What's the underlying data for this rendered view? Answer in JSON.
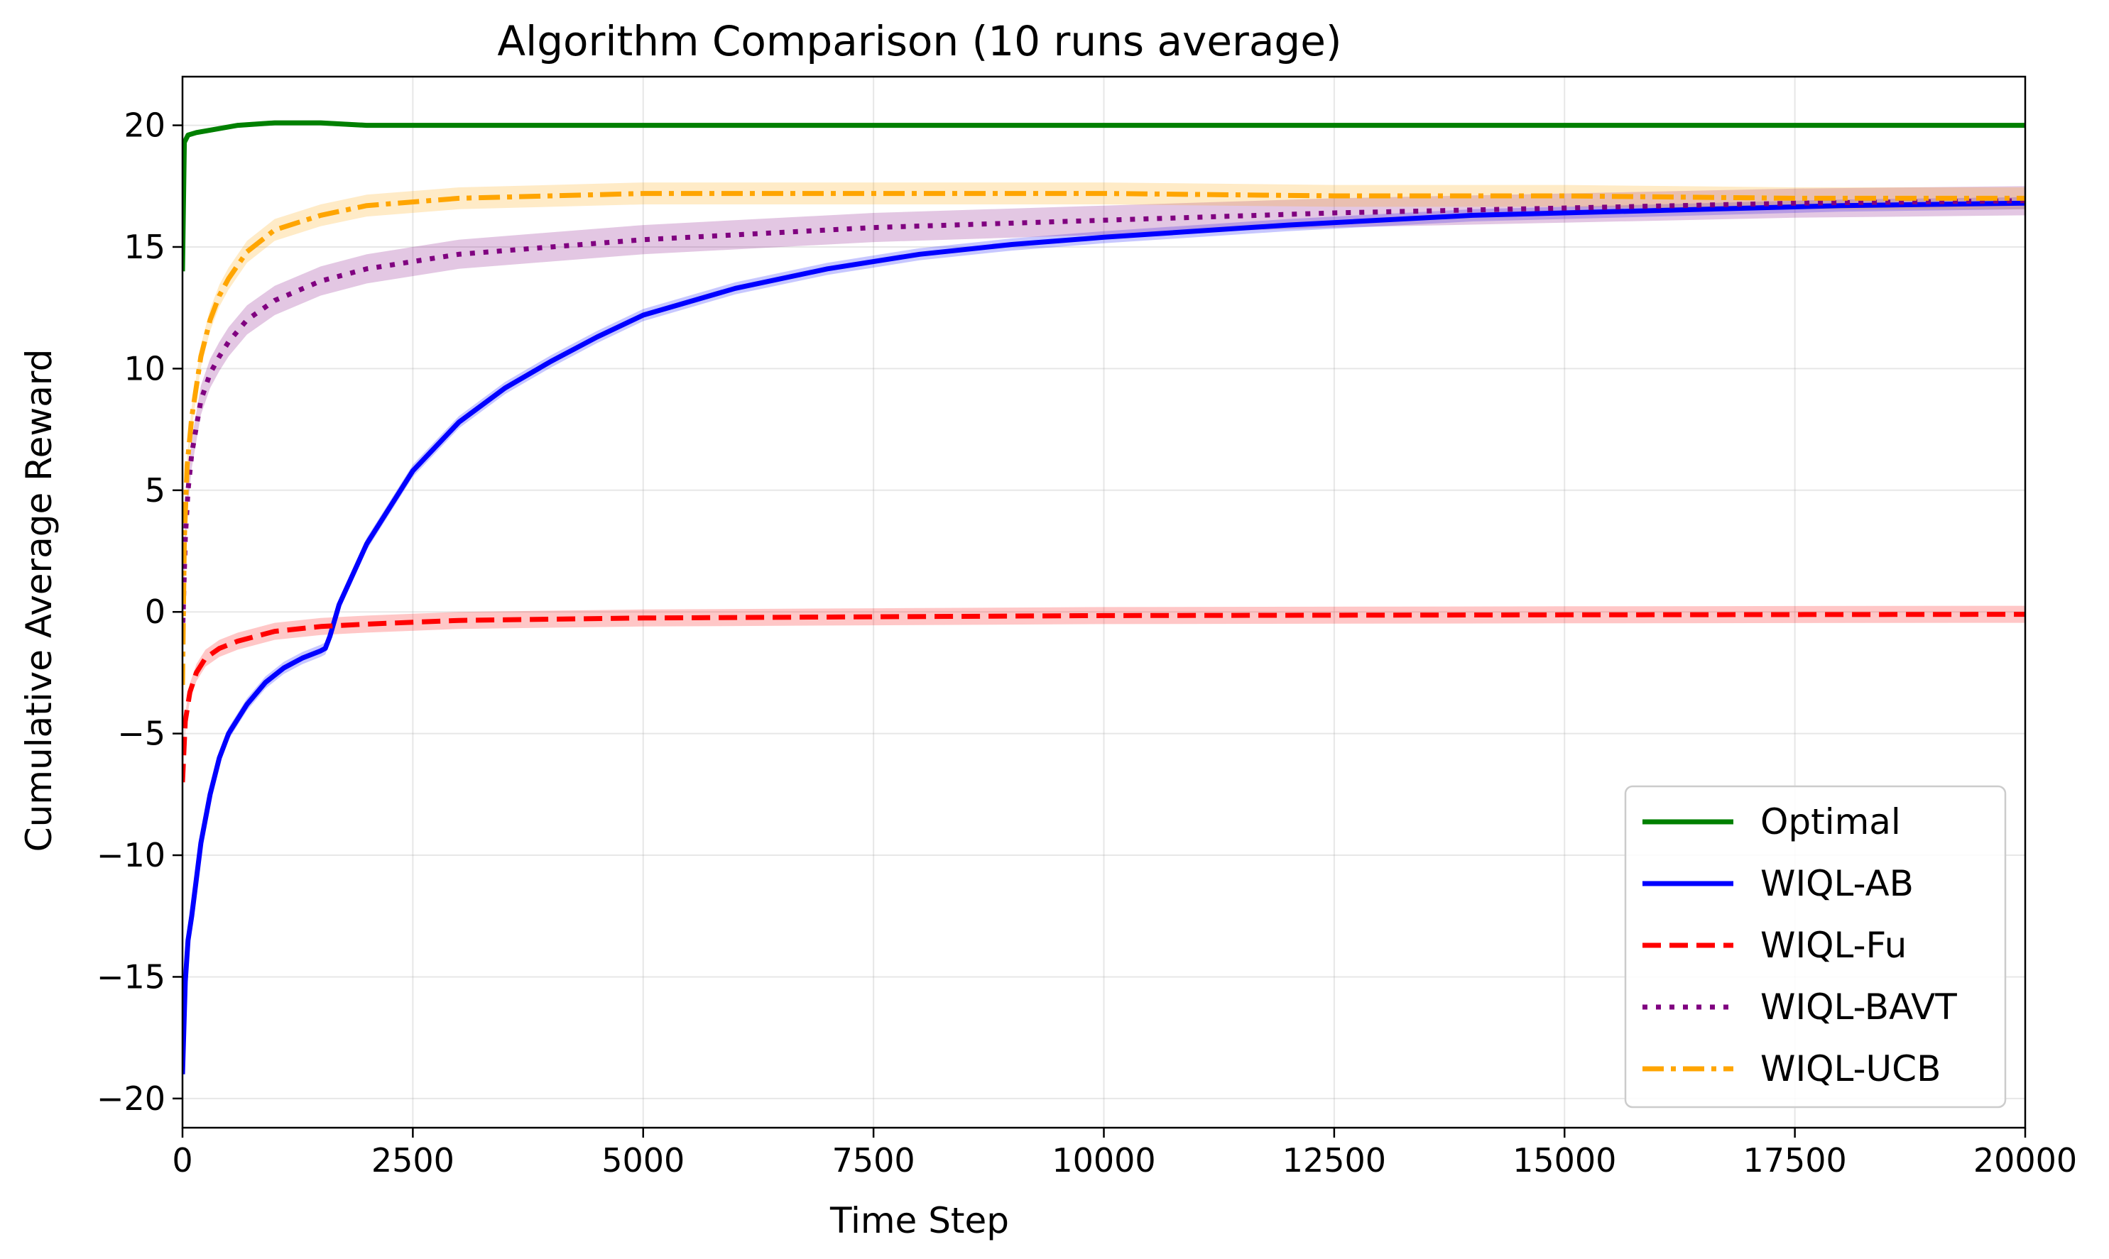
{
  "chart_data": {
    "type": "line",
    "title": "Algorithm Comparison (10 runs average)",
    "xlabel": "Time Step",
    "ylabel": "Cumulative Average Reward",
    "xlim": [
      0,
      20000
    ],
    "ylim": [
      -21.2,
      22
    ],
    "xticks": [
      0,
      2500,
      5000,
      7500,
      10000,
      12500,
      15000,
      17500,
      20000
    ],
    "xtick_labels": [
      "0",
      "2500",
      "5000",
      "7500",
      "10000",
      "12500",
      "15000",
      "17500",
      "20000"
    ],
    "yticks": [
      -20,
      -15,
      -10,
      -5,
      0,
      5,
      10,
      15,
      20
    ],
    "ytick_labels": [
      "−20",
      "−15",
      "−10",
      "−5",
      "0",
      "5",
      "10",
      "15",
      "20"
    ],
    "grid": true,
    "legend": "bottom-right",
    "series": [
      {
        "name": "Optimal",
        "color": "#008000",
        "dash": "solid",
        "band": 0.1,
        "points": [
          [
            0,
            14
          ],
          [
            20,
            19.3
          ],
          [
            60,
            19.6
          ],
          [
            150,
            19.7
          ],
          [
            300,
            19.8
          ],
          [
            600,
            20.0
          ],
          [
            1000,
            20.1
          ],
          [
            1500,
            20.1
          ],
          [
            2000,
            20.0
          ],
          [
            5000,
            20.0
          ],
          [
            10000,
            20.0
          ],
          [
            15000,
            20.0
          ],
          [
            20000,
            20.0
          ]
        ]
      },
      {
        "name": "WIQL-AB",
        "color": "#0000ff",
        "dash": "solid",
        "band": 0.25,
        "points": [
          [
            0,
            -19
          ],
          [
            30,
            -15.2
          ],
          [
            60,
            -13.5
          ],
          [
            100,
            -12.5
          ],
          [
            200,
            -9.5
          ],
          [
            300,
            -7.5
          ],
          [
            400,
            -6
          ],
          [
            500,
            -5
          ],
          [
            700,
            -3.8
          ],
          [
            900,
            -2.9
          ],
          [
            1100,
            -2.3
          ],
          [
            1300,
            -1.9
          ],
          [
            1500,
            -1.6
          ],
          [
            1550,
            -1.5
          ],
          [
            1600,
            -1.0
          ],
          [
            1700,
            0.3
          ],
          [
            2000,
            2.8
          ],
          [
            2500,
            5.8
          ],
          [
            3000,
            7.8
          ],
          [
            3500,
            9.2
          ],
          [
            4000,
            10.3
          ],
          [
            4500,
            11.3
          ],
          [
            5000,
            12.2
          ],
          [
            6000,
            13.3
          ],
          [
            7000,
            14.1
          ],
          [
            8000,
            14.7
          ],
          [
            9000,
            15.1
          ],
          [
            10000,
            15.4
          ],
          [
            12000,
            15.9
          ],
          [
            14000,
            16.3
          ],
          [
            16000,
            16.5
          ],
          [
            18000,
            16.7
          ],
          [
            20000,
            16.8
          ]
        ]
      },
      {
        "name": "WIQL-Fu",
        "color": "#ff0000",
        "dash": "dashed",
        "band": 0.35,
        "points": [
          [
            0,
            -7
          ],
          [
            30,
            -4.5
          ],
          [
            80,
            -3.3
          ],
          [
            150,
            -2.5
          ],
          [
            250,
            -1.9
          ],
          [
            400,
            -1.5
          ],
          [
            600,
            -1.2
          ],
          [
            800,
            -1.0
          ],
          [
            1000,
            -0.8
          ],
          [
            1500,
            -0.6
          ],
          [
            2000,
            -0.5
          ],
          [
            3000,
            -0.35
          ],
          [
            5000,
            -0.25
          ],
          [
            7500,
            -0.2
          ],
          [
            10000,
            -0.15
          ],
          [
            15000,
            -0.12
          ],
          [
            20000,
            -0.1
          ]
        ]
      },
      {
        "name": "WIQL-BAVT",
        "color": "#800080",
        "dash": "dotted",
        "band": 0.6,
        "points": [
          [
            0,
            -1
          ],
          [
            30,
            3
          ],
          [
            60,
            5
          ],
          [
            100,
            6.5
          ],
          [
            200,
            8.7
          ],
          [
            300,
            9.8
          ],
          [
            400,
            10.5
          ],
          [
            500,
            11.1
          ],
          [
            700,
            12.0
          ],
          [
            1000,
            12.8
          ],
          [
            1500,
            13.6
          ],
          [
            2000,
            14.1
          ],
          [
            3000,
            14.7
          ],
          [
            4000,
            15.0
          ],
          [
            5000,
            15.3
          ],
          [
            7500,
            15.8
          ],
          [
            10000,
            16.1
          ],
          [
            12500,
            16.4
          ],
          [
            15000,
            16.6
          ],
          [
            17500,
            16.8
          ],
          [
            20000,
            16.9
          ]
        ]
      },
      {
        "name": "WIQL-UCB",
        "color": "#ffa500",
        "dash": "dashdot",
        "band": 0.45,
        "points": [
          [
            0,
            -3
          ],
          [
            20,
            3
          ],
          [
            50,
            6
          ],
          [
            100,
            8
          ],
          [
            200,
            10.5
          ],
          [
            300,
            12.0
          ],
          [
            400,
            13.0
          ],
          [
            500,
            13.7
          ],
          [
            700,
            14.8
          ],
          [
            1000,
            15.7
          ],
          [
            1500,
            16.3
          ],
          [
            2000,
            16.7
          ],
          [
            3000,
            17.0
          ],
          [
            4000,
            17.1
          ],
          [
            5000,
            17.2
          ],
          [
            7500,
            17.2
          ],
          [
            10000,
            17.2
          ],
          [
            12500,
            17.1
          ],
          [
            15000,
            17.1
          ],
          [
            17500,
            17.0
          ],
          [
            20000,
            17.0
          ]
        ]
      }
    ]
  }
}
